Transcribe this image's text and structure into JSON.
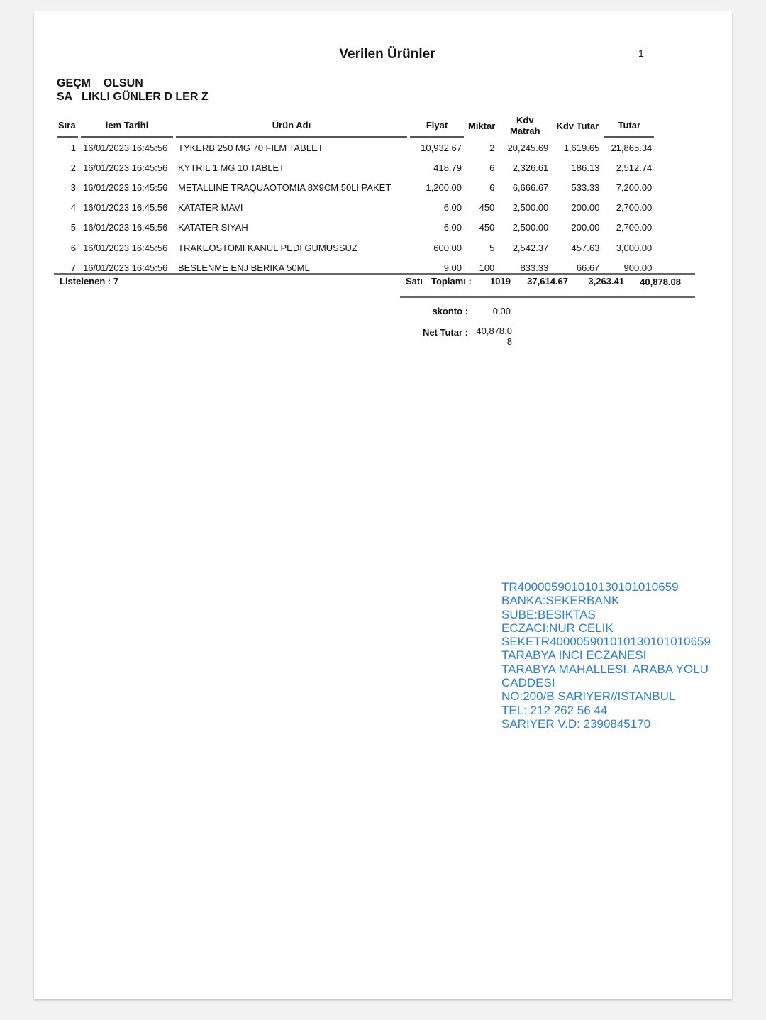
{
  "document": {
    "title": "Verilen Ürünler",
    "page_number": "1",
    "header_lines": [
      "GEÇM    OLSUN",
      "SA   LIKLI GÜNLER D LER Z"
    ]
  },
  "table": {
    "columns": [
      "Sıra",
      "lem Tarihi",
      "Ürün Adı",
      "Fiyat",
      "Miktar",
      "Kdv Matrah",
      "Kdv Tutar",
      "Tutar"
    ],
    "rows": [
      [
        "1",
        "16/01/2023 16:45:56",
        "TYKERB 250 MG 70 FILM TABLET",
        "10,932.67",
        "2",
        "20,245.69",
        "1,619.65",
        "21,865.34"
      ],
      [
        "2",
        "16/01/2023 16:45:56",
        "KYTRIL 1 MG 10 TABLET",
        "418.79",
        "6",
        "2,326.61",
        "186.13",
        "2,512.74"
      ],
      [
        "3",
        "16/01/2023 16:45:56",
        "METALLINE TRAQUAOTOMIA 8X9CM 50LI PAKET",
        "1,200.00",
        "6",
        "6,666.67",
        "533.33",
        "7,200.00"
      ],
      [
        "4",
        "16/01/2023 16:45:56",
        "KATATER MAVI",
        "6.00",
        "450",
        "2,500.00",
        "200.00",
        "2,700.00"
      ],
      [
        "5",
        "16/01/2023 16:45:56",
        "KATATER SIYAH",
        "6.00",
        "450",
        "2,500.00",
        "200.00",
        "2,700.00"
      ],
      [
        "6",
        "16/01/2023 16:45:56",
        "TRAKEOSTOMI KANUL PEDI GUMUSSUZ",
        "600.00",
        "5",
        "2,542.37",
        "457.63",
        "3,000.00"
      ],
      [
        "7",
        "16/01/2023 16:45:56",
        "BESLENME ENJ BERIKA 50ML",
        "9.00",
        "100",
        "833.33",
        "66.67",
        "900.00"
      ]
    ]
  },
  "footer": {
    "listed_label": "Listelenen : 7",
    "total_label_1": "Satı",
    "total_label_2": "Toplamı :",
    "total_qty": "1019",
    "total_kdv_matrah": "37,614.67",
    "total_kdv_tutar": "3,263.41",
    "total_tutar": "40,878.08",
    "discount_label": "skonto :",
    "discount_value": "0.00",
    "net_label": "Net Tutar :",
    "net_value": "40,878.08"
  },
  "bank_info": [
    "TR400005901010130101010659",
    "BANKA:SEKERBANK",
    "SUBE:BESIKTAS",
    "ECZACI:NUR CELIK",
    "SEKETR400005901010130101010659",
    "TARABYA INCI ECZANESI",
    "TARABYA MAHALLESI. ARABA YOLU",
    "CADDESI",
    "NO:200/B SARIYER//ISTANBUL",
    "TEL: 212 262 56 44",
    "SARIYER V.D: 2390845170"
  ],
  "colors": {
    "bank_text": "#2a7fd0"
  }
}
